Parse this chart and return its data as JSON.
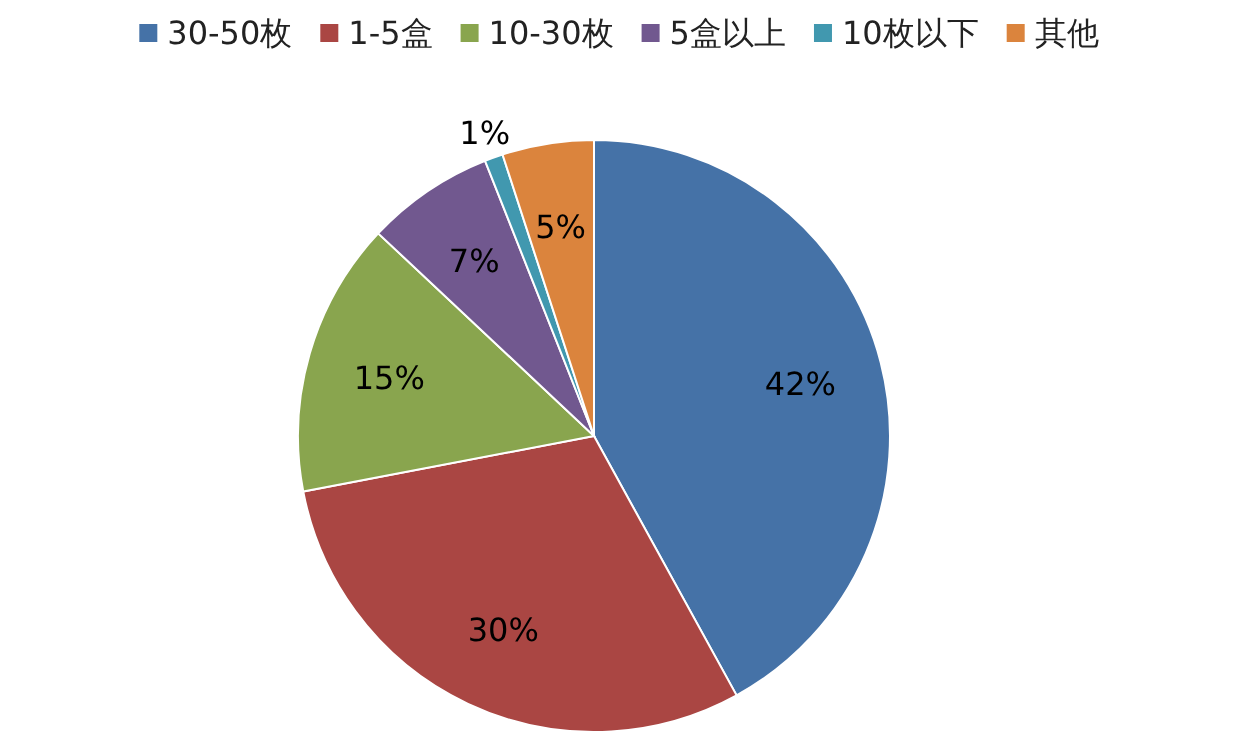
{
  "chart_data": {
    "type": "pie",
    "categories": [
      "30-50枚",
      "1-5盒",
      "10-30枚",
      "5盒以上",
      "10枚以下",
      "其他"
    ],
    "values": [
      42,
      30,
      15,
      7,
      1,
      5
    ],
    "colors": [
      "#4572a7",
      "#aa4643",
      "#89a54e",
      "#71588f",
      "#4198af",
      "#db843d"
    ],
    "value_labels": [
      "42%",
      "30%",
      "15%",
      "7%",
      "1%",
      "5%"
    ],
    "legend": "top"
  }
}
